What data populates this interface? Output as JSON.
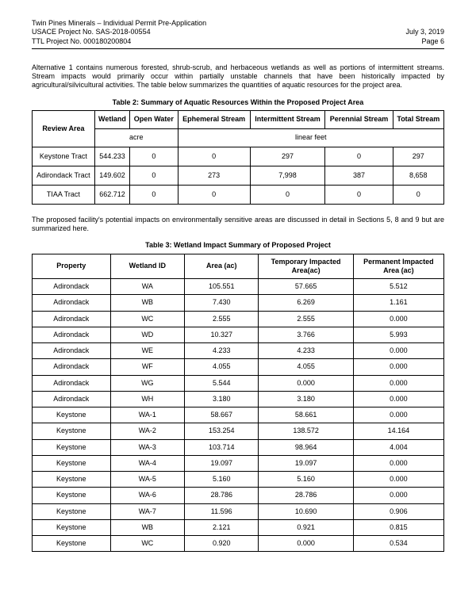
{
  "header": {
    "line1": "Twin Pines Minerals – Individual Permit Pre-Application",
    "line2": "USACE Project No. SAS-2018-00554",
    "line3": "TTL Project No. 000180200804",
    "date": "July 3, 2019",
    "page": "Page 6"
  },
  "para1": "Alternative 1 contains numerous forested, shrub-scrub, and herbaceous wetlands as well as portions of intermittent streams.  Stream impacts would primarily occur within partially unstable channels that have been historically impacted by agricultural/silvicultural activities.  The table below summarizes the quantities of aquatic resources for the project area.",
  "t2": {
    "caption": "Table 2: Summary of Aquatic Resources Within the Proposed Project Area",
    "head": [
      "Review Area",
      "Wetland",
      "Open Water",
      "Ephemeral Stream",
      "Intermittent Stream",
      "Perennial Stream",
      "Total Stream"
    ],
    "unitL": "acre",
    "unitR": "linear feet",
    "rows": [
      [
        "Keystone Tract",
        "544.233",
        "0",
        "0",
        "297",
        "0",
        "297"
      ],
      [
        "Adirondack Tract",
        "149.602",
        "0",
        "273",
        "7,998",
        "387",
        "8,658"
      ],
      [
        "TIAA Tract",
        "662.712",
        "0",
        "0",
        "0",
        "0",
        "0"
      ]
    ]
  },
  "para2": "The proposed facility's potential impacts on environmentally sensitive areas are discussed in detail in Sections 5, 8 and 9 but are summarized here.",
  "t3": {
    "caption": "Table 3: Wetland Impact Summary of Proposed Project",
    "head": [
      "Property",
      "Wetland ID",
      "Area (ac)",
      "Temporary Impacted Area(ac)",
      "Permanent Impacted Area (ac)"
    ],
    "rows": [
      [
        "Adirondack",
        "WA",
        "105.551",
        "57.665",
        "5.512"
      ],
      [
        "Adirondack",
        "WB",
        "7.430",
        "6.269",
        "1.161"
      ],
      [
        "Adirondack",
        "WC",
        "2.555",
        "2.555",
        "0.000"
      ],
      [
        "Adirondack",
        "WD",
        "10.327",
        "3.766",
        "5.993"
      ],
      [
        "Adirondack",
        "WE",
        "4.233",
        "4.233",
        "0.000"
      ],
      [
        "Adirondack",
        "WF",
        "4.055",
        "4.055",
        "0.000"
      ],
      [
        "Adirondack",
        "WG",
        "5.544",
        "0.000",
        "0.000"
      ],
      [
        "Adirondack",
        "WH",
        "3.180",
        "3.180",
        "0.000"
      ],
      [
        "Keystone",
        "WA-1",
        "58.667",
        "58.661",
        "0.000"
      ],
      [
        "Keystone",
        "WA-2",
        "153.254",
        "138.572",
        "14.164"
      ],
      [
        "Keystone",
        "WA-3",
        "103.714",
        "98.964",
        "4.004"
      ],
      [
        "Keystone",
        "WA-4",
        "19.097",
        "19.097",
        "0.000"
      ],
      [
        "Keystone",
        "WA-5",
        "5.160",
        "5.160",
        "0.000"
      ],
      [
        "Keystone",
        "WA-6",
        "28.786",
        "28.786",
        "0.000"
      ],
      [
        "Keystone",
        "WA-7",
        "11.596",
        "10.690",
        "0.906"
      ],
      [
        "Keystone",
        "WB",
        "2.121",
        "0.921",
        "0.815"
      ],
      [
        "Keystone",
        "WC",
        "0.920",
        "0.000",
        "0.534"
      ]
    ]
  }
}
